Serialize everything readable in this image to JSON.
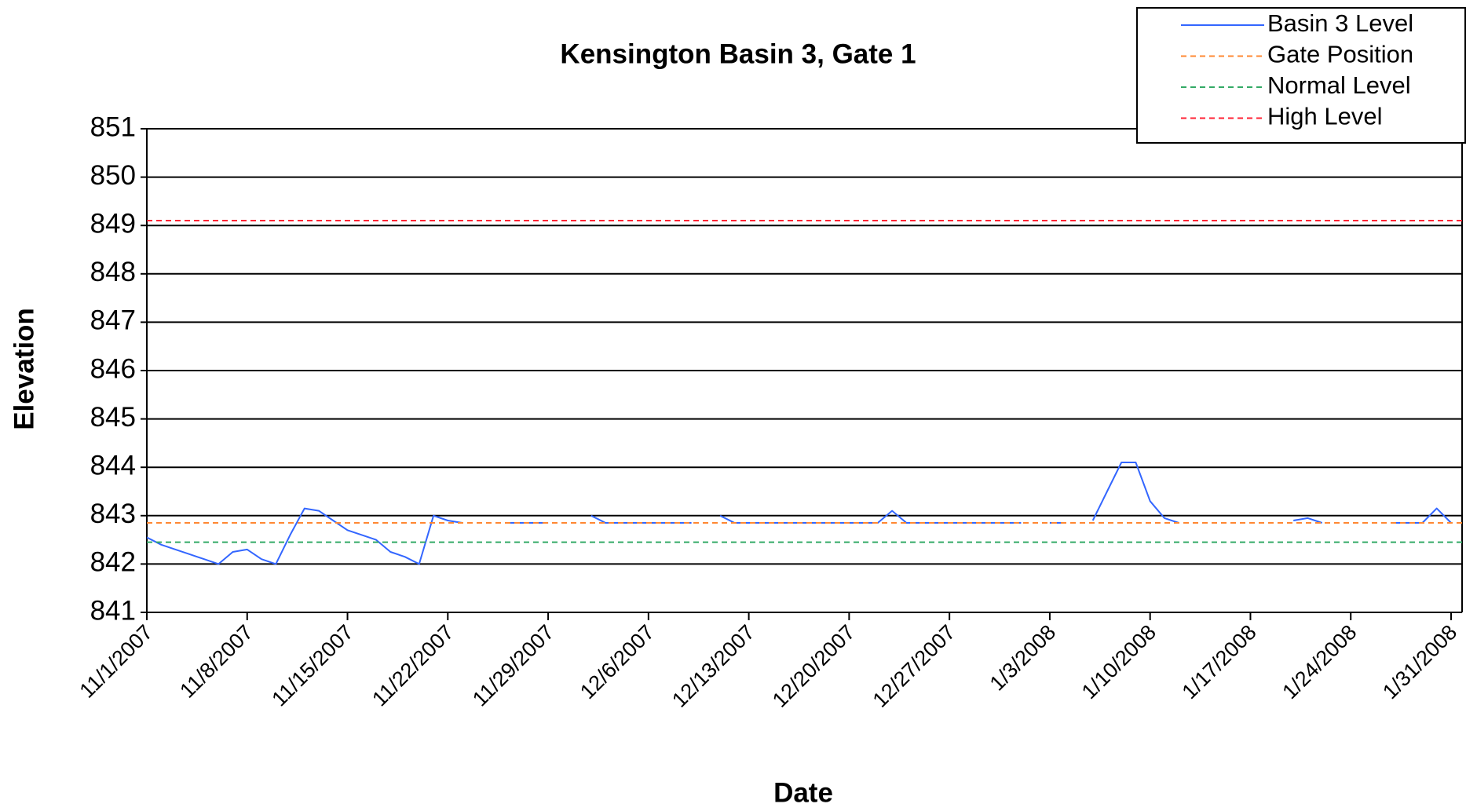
{
  "chart_data": {
    "type": "line",
    "title": "Kensington Basin 3, Gate 1",
    "xlabel": "Date",
    "ylabel": "Elevation",
    "x": [
      "11/1/2007",
      "11/2/2007",
      "11/3/2007",
      "11/4/2007",
      "11/5/2007",
      "11/6/2007",
      "11/7/2007",
      "11/8/2007",
      "11/9/2007",
      "11/10/2007",
      "11/11/2007",
      "11/12/2007",
      "11/13/2007",
      "11/14/2007",
      "11/15/2007",
      "11/16/2007",
      "11/17/2007",
      "11/18/2007",
      "11/19/2007",
      "11/20/2007",
      "11/21/2007",
      "11/22/2007",
      "11/23/2007",
      "11/24/2007",
      "11/25/2007",
      "11/26/2007",
      "11/27/2007",
      "11/28/2007",
      "11/29/2007",
      "11/30/2007",
      "12/1/2007",
      "12/2/2007",
      "12/3/2007",
      "12/4/2007",
      "12/5/2007",
      "12/6/2007",
      "12/7/2007",
      "12/8/2007",
      "12/9/2007",
      "12/10/2007",
      "12/11/2007",
      "12/12/2007",
      "12/13/2007",
      "12/14/2007",
      "12/15/2007",
      "12/16/2007",
      "12/17/2007",
      "12/18/2007",
      "12/19/2007",
      "12/20/2007",
      "12/21/2007",
      "12/22/2007",
      "12/23/2007",
      "12/24/2007",
      "12/25/2007",
      "12/26/2007",
      "12/27/2007",
      "12/28/2007",
      "12/29/2007",
      "12/30/2007",
      "12/31/2007",
      "1/1/2008",
      "1/2/2008",
      "1/3/2008",
      "1/4/2008",
      "1/5/2008",
      "1/6/2008",
      "1/7/2008",
      "1/8/2008",
      "1/9/2008",
      "1/10/2008",
      "1/11/2008",
      "1/12/2008",
      "1/13/2008",
      "1/14/2008",
      "1/15/2008",
      "1/16/2008",
      "1/17/2008",
      "1/18/2008",
      "1/19/2008",
      "1/20/2008",
      "1/21/2008",
      "1/22/2008",
      "1/23/2008",
      "1/24/2008",
      "1/25/2008",
      "1/26/2008",
      "1/27/2008",
      "1/28/2008",
      "1/29/2008",
      "1/30/2008",
      "1/31/2008"
    ],
    "series": [
      {
        "name": "Basin 3 Level",
        "color": "#3366ff",
        "values": [
          842.55,
          842.4,
          842.3,
          842.2,
          842.1,
          842.0,
          842.25,
          842.3,
          842.1,
          842.0,
          842.6,
          843.15,
          843.1,
          842.9,
          842.7,
          842.6,
          842.5,
          842.25,
          842.15,
          842.0,
          843.0,
          842.9,
          842.85,
          null,
          null,
          842.85,
          842.85,
          842.85,
          842.85,
          null,
          null,
          843.0,
          842.85,
          842.85,
          842.85,
          842.85,
          842.85,
          842.85,
          842.85,
          null,
          843.0,
          842.85,
          842.85,
          842.85,
          842.85,
          842.85,
          842.85,
          842.85,
          842.85,
          842.85,
          842.85,
          842.85,
          843.1,
          842.85,
          842.85,
          842.85,
          842.85,
          842.85,
          842.85,
          842.85,
          842.85,
          842.85,
          null,
          842.85,
          842.85,
          null,
          842.9,
          843.5,
          844.1,
          844.1,
          843.3,
          842.95,
          842.85,
          null,
          null,
          null,
          null,
          null,
          null,
          null,
          842.9,
          842.95,
          842.85,
          null,
          null,
          null,
          null,
          842.85,
          842.85,
          842.85,
          843.15,
          842.85
        ]
      },
      {
        "name": "Gate Position",
        "color": "#ff8833",
        "level": 842.85,
        "dashed": true
      },
      {
        "name": "Normal Level",
        "color": "#33aa66",
        "level": 842.45,
        "dashed": true
      },
      {
        "name": "High Level",
        "color": "#ff2233",
        "level": 849.1,
        "dashed": true
      }
    ],
    "ylim": [
      841,
      851
    ],
    "yticks": [
      841,
      842,
      843,
      844,
      845,
      846,
      847,
      848,
      849,
      850,
      851
    ],
    "xticks": [
      "11/1/2007",
      "11/8/2007",
      "11/15/2007",
      "11/22/2007",
      "11/29/2007",
      "12/6/2007",
      "12/13/2007",
      "12/20/2007",
      "12/27/2007",
      "1/3/2008",
      "1/10/2008",
      "1/17/2008",
      "1/24/2008",
      "1/31/2008"
    ],
    "grid": true,
    "legend": "top-right"
  }
}
